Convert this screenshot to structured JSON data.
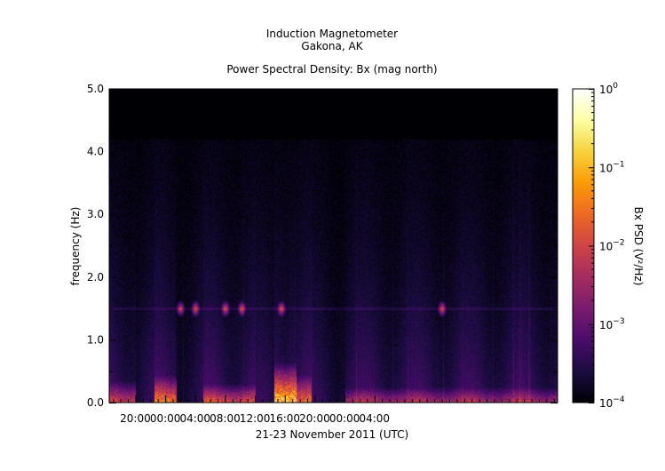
{
  "chart_data": {
    "type": "heatmap",
    "title": "Induction Magnetometer",
    "subtitle": "Gakona, AK",
    "plot_title": "Power Spectral Density: Bx (mag north)",
    "xlabel": "21-23 November 2011 (UTC)",
    "ylabel": "frequency (Hz)",
    "colorbar_label": "Bx PSD (V²/Hz)",
    "xlim_hours": [
      16.5,
      76.5
    ],
    "ylim": [
      0,
      5
    ],
    "x_tick_labels": [
      "20:00",
      "00:00",
      "04:00",
      "08:00",
      "12:00",
      "16:00",
      "20:00",
      "00:00",
      "04:00"
    ],
    "x_tick_hours": [
      20,
      24,
      28,
      32,
      36,
      40,
      44,
      48,
      52
    ],
    "y_ticks": [
      0,
      1,
      2,
      3,
      4,
      5
    ],
    "y_tick_labels": [
      "0.0",
      "1.0",
      "2.0",
      "3.0",
      "4.0",
      "5.0"
    ],
    "colorbar_ticks": [
      {
        "base": "10",
        "exp": "0"
      },
      {
        "base": "10",
        "exp": "−1"
      },
      {
        "base": "10",
        "exp": "−2"
      },
      {
        "base": "10",
        "exp": "−3"
      },
      {
        "base": "10",
        "exp": "−4"
      }
    ],
    "colorbar_scale": "log",
    "colorbar_range": [
      0.0001,
      1
    ],
    "colormap": [
      "#000004",
      "#1b0c41",
      "#4a0c6b",
      "#781c6d",
      "#a52c60",
      "#cf4446",
      "#ed6925",
      "#fb9b06",
      "#f7d13d",
      "#fcffa4",
      "#ffffff"
    ],
    "features": [
      {
        "hour_start": 16.5,
        "hour_end": 20.0,
        "freq_max": 0.35,
        "level": 0.45
      },
      {
        "hour_start": 22.5,
        "hour_end": 25.5,
        "freq_max": 0.45,
        "level": 0.6
      },
      {
        "hour_start": 29.0,
        "hour_end": 36.0,
        "freq_max": 0.3,
        "level": 0.5
      },
      {
        "hour_start": 38.5,
        "hour_end": 41.5,
        "freq_max": 0.65,
        "level": 0.85
      },
      {
        "hour_start": 41.5,
        "hour_end": 43.5,
        "freq_max": 0.45,
        "level": 0.55
      },
      {
        "hour_start": 48.0,
        "hour_end": 76.5,
        "freq_max": 0.25,
        "level": 0.35
      }
    ],
    "band_line_hz": 1.5,
    "band_hotspots_hours": [
      26.0,
      28.0,
      32.0,
      34.2,
      39.5,
      61.0
    ]
  }
}
